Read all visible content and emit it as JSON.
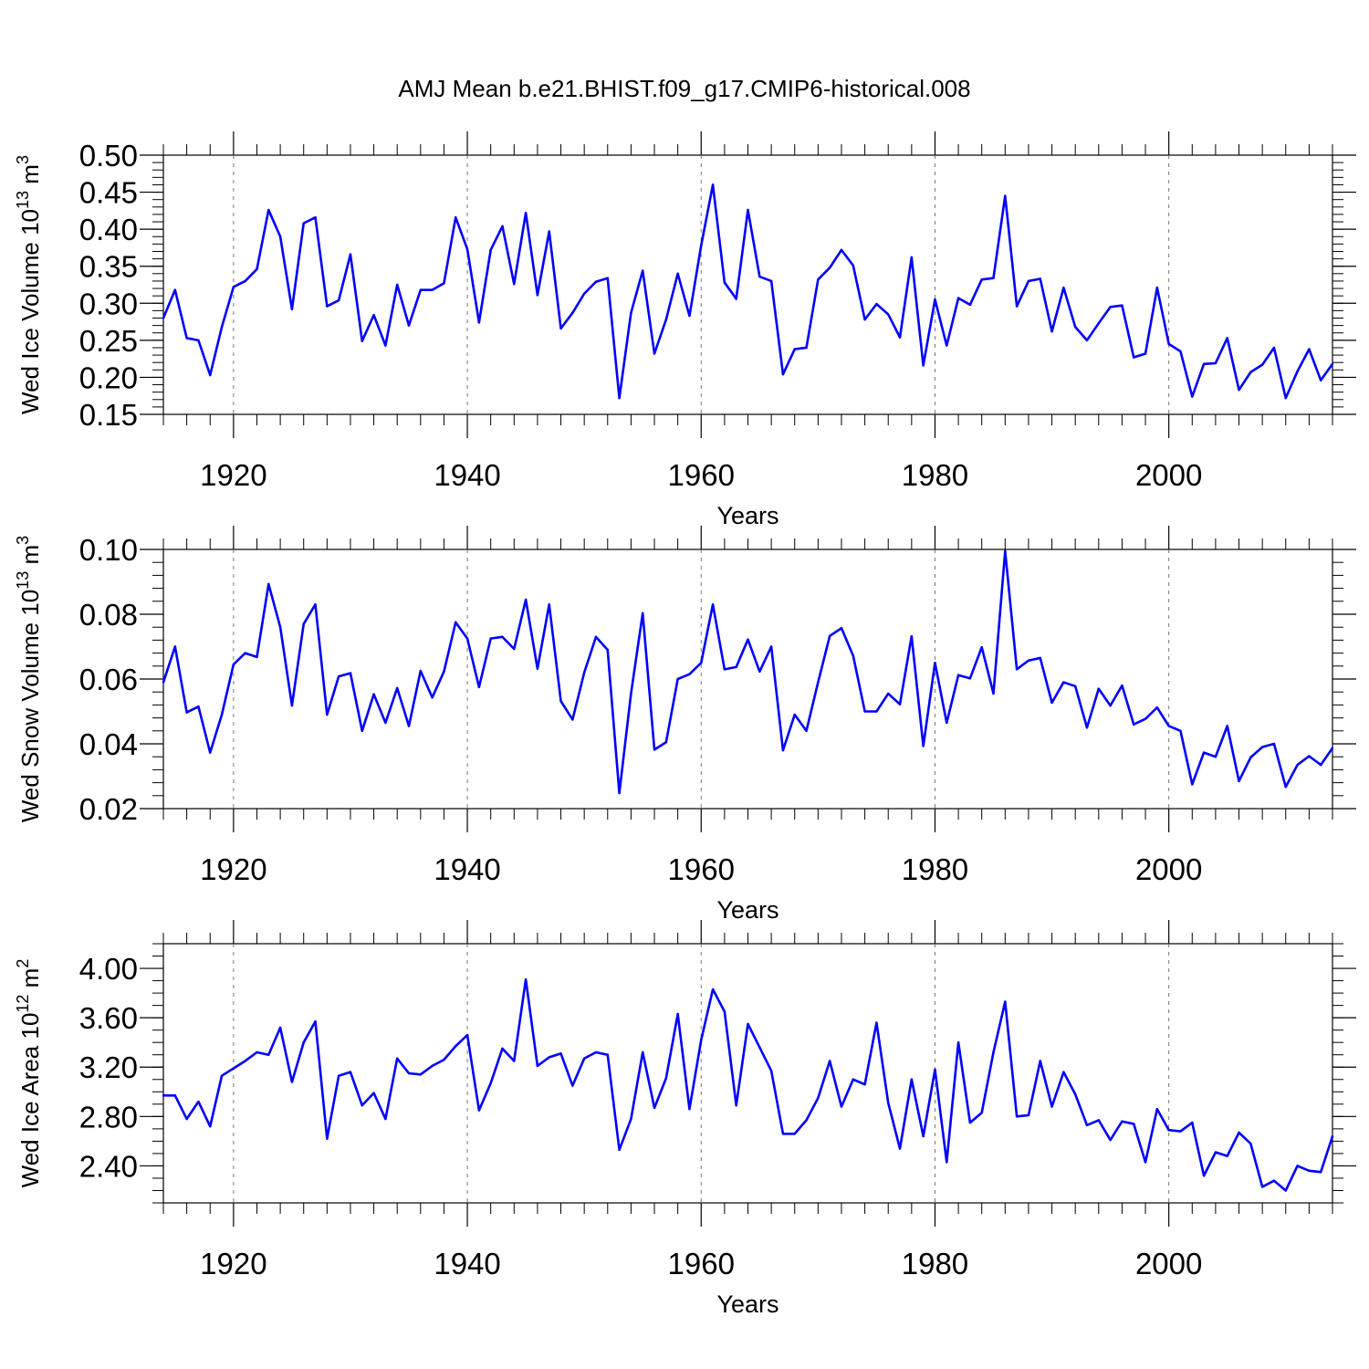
{
  "title": "AMJ Mean b.e21.BHIST.f09_g17.CMIP6-historical.008",
  "line_color": "#0000ff",
  "chart_data": [
    {
      "type": "line",
      "id": "ice-volume",
      "ylabel": {
        "prefix": "Wed Ice Volume 10",
        "exp": "13",
        "unit": " m",
        "unit_exp": "3"
      },
      "xlabel": "Years",
      "xlim": [
        1914,
        2014
      ],
      "ylim": [
        0.15,
        0.5
      ],
      "xticks": [
        1920,
        1940,
        1960,
        1980,
        2000
      ],
      "xtick_labels": [
        "1920",
        "1940",
        "1960",
        "1980",
        "2000"
      ],
      "yticks": [
        0.15,
        0.2,
        0.25,
        0.3,
        0.35,
        0.4,
        0.45,
        0.5
      ],
      "ytick_labels": [
        "0.15",
        "0.20",
        "0.25",
        "0.30",
        "0.35",
        "0.40",
        "0.45",
        "0.50"
      ],
      "yminor": 0.01,
      "x_start": 1914,
      "values": [
        0.28,
        0.318,
        0.253,
        0.25,
        0.203,
        0.268,
        0.322,
        0.33,
        0.346,
        0.426,
        0.39,
        0.292,
        0.408,
        0.416,
        0.296,
        0.304,
        0.366,
        0.249,
        0.284,
        0.243,
        0.325,
        0.27,
        0.318,
        0.318,
        0.327,
        0.416,
        0.373,
        0.274,
        0.372,
        0.404,
        0.326,
        0.422,
        0.311,
        0.397,
        0.266,
        0.287,
        0.313,
        0.329,
        0.334,
        0.172,
        0.287,
        0.344,
        0.232,
        0.278,
        0.34,
        0.283,
        0.378,
        0.46,
        0.328,
        0.306,
        0.426,
        0.336,
        0.33,
        0.204,
        0.238,
        0.24,
        0.332,
        0.348,
        0.372,
        0.351,
        0.278,
        0.299,
        0.285,
        0.254,
        0.362,
        0.216,
        0.305,
        0.243,
        0.307,
        0.298,
        0.332,
        0.334,
        0.445,
        0.296,
        0.33,
        0.333,
        0.262,
        0.321,
        0.268,
        0.25,
        0.273,
        0.295,
        0.297,
        0.227,
        0.232,
        0.321,
        0.245,
        0.235,
        0.174,
        0.218,
        0.219,
        0.253,
        0.183,
        0.207,
        0.217,
        0.24,
        0.172,
        0.208,
        0.238,
        0.196,
        0.218
      ]
    },
    {
      "type": "line",
      "id": "snow-volume",
      "ylabel": {
        "prefix": "Wed Snow Volume 10",
        "exp": "13",
        "unit": " m",
        "unit_exp": "3"
      },
      "xlabel": "Years",
      "xlim": [
        1914,
        2014
      ],
      "ylim": [
        0.02,
        0.1
      ],
      "xticks": [
        1920,
        1940,
        1960,
        1980,
        2000
      ],
      "xtick_labels": [
        "1920",
        "1940",
        "1960",
        "1980",
        "2000"
      ],
      "yticks": [
        0.02,
        0.04,
        0.06,
        0.08,
        0.1
      ],
      "ytick_labels": [
        "0.02",
        "0.04",
        "0.06",
        "0.08",
        "0.10"
      ],
      "yminor": 0.004,
      "x_start": 1914,
      "values": [
        0.059,
        0.07,
        0.0497,
        0.0515,
        0.0373,
        0.049,
        0.0645,
        0.068,
        0.0668,
        0.0893,
        0.076,
        0.0518,
        0.077,
        0.083,
        0.049,
        0.0608,
        0.0618,
        0.044,
        0.0553,
        0.0465,
        0.0572,
        0.0455,
        0.0625,
        0.0543,
        0.0623,
        0.0775,
        0.0725,
        0.0575,
        0.0725,
        0.073,
        0.0693,
        0.0845,
        0.0632,
        0.083,
        0.0532,
        0.0475,
        0.062,
        0.073,
        0.069,
        0.0248,
        0.0555,
        0.0803,
        0.0382,
        0.0405,
        0.06,
        0.0615,
        0.065,
        0.083,
        0.063,
        0.0637,
        0.0722,
        0.0623,
        0.07,
        0.038,
        0.049,
        0.044,
        0.059,
        0.0733,
        0.0757,
        0.0672,
        0.05,
        0.05,
        0.0555,
        0.0522,
        0.0732,
        0.0393,
        0.065,
        0.0465,
        0.0612,
        0.0602,
        0.0698,
        0.0555,
        0.0995,
        0.063,
        0.0657,
        0.0665,
        0.0527,
        0.059,
        0.0578,
        0.045,
        0.057,
        0.0518,
        0.058,
        0.046,
        0.0477,
        0.0512,
        0.0455,
        0.044,
        0.0275,
        0.0373,
        0.036,
        0.0455,
        0.0285,
        0.0358,
        0.039,
        0.04,
        0.0267,
        0.0335,
        0.0362,
        0.0335,
        0.0387
      ]
    },
    {
      "type": "line",
      "id": "ice-area",
      "ylabel": {
        "prefix": "Wed Ice Area 10",
        "exp": "12",
        "unit": " m",
        "unit_exp": "2"
      },
      "xlabel": "Years",
      "xlim": [
        1914,
        2014
      ],
      "ylim": [
        2.1,
        4.2
      ],
      "xticks": [
        1920,
        1940,
        1960,
        1980,
        2000
      ],
      "xtick_labels": [
        "1920",
        "1940",
        "1960",
        "1980",
        "2000"
      ],
      "yticks": [
        2.4,
        2.8,
        3.2,
        3.6,
        4.0
      ],
      "ytick_labels": [
        "2.40",
        "2.80",
        "3.20",
        "3.60",
        "4.00"
      ],
      "yminor": 0.1,
      "x_start": 1914,
      "values": [
        2.97,
        2.97,
        2.78,
        2.92,
        2.72,
        3.13,
        3.19,
        3.25,
        3.32,
        3.3,
        3.52,
        3.08,
        3.4,
        3.57,
        2.62,
        3.13,
        3.16,
        2.89,
        2.99,
        2.78,
        3.27,
        3.15,
        3.14,
        3.21,
        3.26,
        3.37,
        3.46,
        2.85,
        3.07,
        3.35,
        3.25,
        3.91,
        3.21,
        3.28,
        3.31,
        3.05,
        3.27,
        3.32,
        3.3,
        2.53,
        2.78,
        3.32,
        2.87,
        3.11,
        3.63,
        2.86,
        3.42,
        3.83,
        3.65,
        2.89,
        3.55,
        3.36,
        3.17,
        2.66,
        2.66,
        2.77,
        2.95,
        3.25,
        2.88,
        3.1,
        3.06,
        3.56,
        2.91,
        2.54,
        3.1,
        2.64,
        3.18,
        2.43,
        3.4,
        2.75,
        2.83,
        3.32,
        3.73,
        2.8,
        2.81,
        3.25,
        2.88,
        3.16,
        2.98,
        2.73,
        2.77,
        2.61,
        2.76,
        2.74,
        2.43,
        2.86,
        2.69,
        2.68,
        2.75,
        2.32,
        2.51,
        2.48,
        2.67,
        2.58,
        2.23,
        2.28,
        2.2,
        2.4,
        2.36,
        2.35,
        2.64
      ]
    }
  ]
}
